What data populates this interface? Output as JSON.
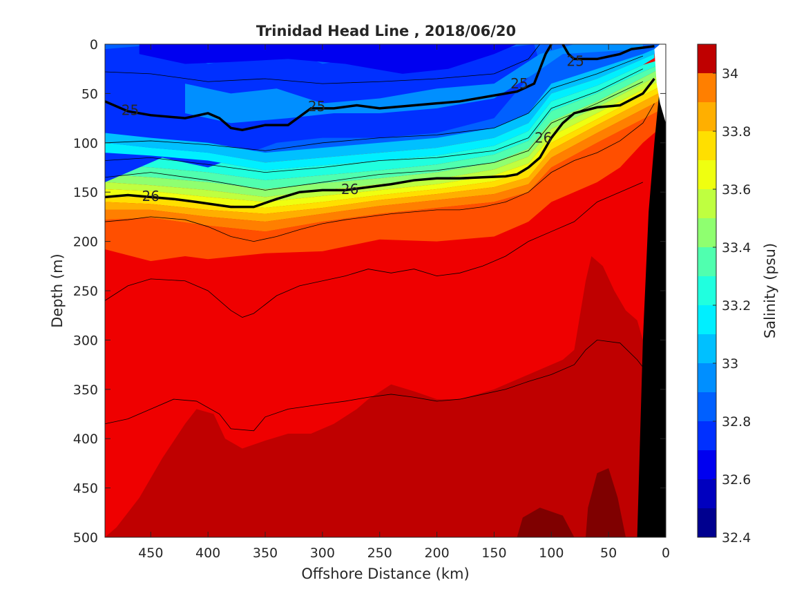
{
  "chart_data": {
    "type": "contour",
    "title": "Trinidad Head Line , 2018/06/20",
    "xlabel": "Offshore Distance (km)",
    "ylabel": "Depth (m)",
    "colorbar_label": "Salinity (psu)",
    "xlim": [
      490,
      0
    ],
    "x_reversed": true,
    "ylim": [
      0,
      500
    ],
    "y_reversed": true,
    "x_ticks": [
      450,
      400,
      350,
      300,
      250,
      200,
      150,
      100,
      50,
      0
    ],
    "y_ticks": [
      0,
      50,
      100,
      150,
      200,
      250,
      300,
      350,
      400,
      450,
      500
    ],
    "colorbar_range": [
      32.4,
      34.1
    ],
    "colorbar_ticks": [
      32.4,
      32.6,
      32.8,
      33,
      33.2,
      33.4,
      33.6,
      33.8,
      34
    ],
    "colorbar_levels": [
      32.4,
      32.5,
      32.6,
      32.7,
      32.8,
      32.9,
      33.0,
      33.1,
      33.2,
      33.3,
      33.4,
      33.5,
      33.6,
      33.7,
      33.8,
      33.9,
      34.0
    ],
    "colormap": [
      "#00008f",
      "#0000bf",
      "#0000f0",
      "#0030ff",
      "#0060ff",
      "#008fff",
      "#00c0ff",
      "#00efff",
      "#20ffdf",
      "#50ffaf",
      "#8fff70",
      "#bfff40",
      "#efff10",
      "#ffdf00",
      "#ffaf00",
      "#ff7f00",
      "#ff4f00",
      "#ef0000",
      "#bf0000"
    ],
    "salinity_bands": [
      {
        "name": "band-32.7",
        "value": 32.75,
        "color_index": 3,
        "top": [
          [
            490,
            5
          ],
          [
            440,
            0
          ],
          [
            400,
            20
          ],
          [
            330,
            5
          ],
          [
            300,
            20
          ],
          [
            250,
            10
          ],
          [
            200,
            0
          ],
          [
            150,
            5
          ],
          [
            115,
            0
          ]
        ],
        "bottom": [
          [
            490,
            140
          ],
          [
            440,
            115
          ],
          [
            400,
            125
          ],
          [
            340,
            100
          ],
          [
            300,
            95
          ],
          [
            250,
            95
          ],
          [
            200,
            90
          ],
          [
            150,
            75
          ],
          [
            110,
            20
          ]
        ]
      },
      {
        "name": "band-32.6",
        "value": 32.65,
        "color_index": 2,
        "top": [
          [
            460,
            0
          ],
          [
            420,
            0
          ],
          [
            380,
            0
          ],
          [
            300,
            0
          ],
          [
            250,
            0
          ],
          [
            200,
            0
          ]
        ],
        "bottom": [
          [
            460,
            10
          ],
          [
            420,
            20
          ],
          [
            380,
            18
          ],
          [
            330,
            15
          ],
          [
            280,
            20
          ],
          [
            230,
            30
          ],
          [
            190,
            25
          ],
          [
            150,
            10
          ],
          [
            130,
            0
          ]
        ]
      },
      {
        "name": "band-32.9",
        "value": 32.9,
        "color_index": 5,
        "top": [
          [
            420,
            40
          ],
          [
            380,
            50
          ],
          [
            340,
            45
          ],
          [
            300,
            60
          ],
          [
            250,
            55
          ],
          [
            200,
            45
          ],
          [
            150,
            40
          ],
          [
            110,
            10
          ],
          [
            80,
            0
          ],
          [
            20,
            0
          ]
        ],
        "bottom": [
          [
            420,
            70
          ],
          [
            380,
            80
          ],
          [
            330,
            75
          ],
          [
            290,
            70
          ],
          [
            250,
            70
          ],
          [
            200,
            65
          ],
          [
            150,
            55
          ],
          [
            115,
            30
          ],
          [
            90,
            10
          ],
          [
            20,
            5
          ]
        ]
      },
      {
        "name": "band-33.0",
        "value": 33.0,
        "color_index": 6,
        "top": [
          [
            490,
            90
          ],
          [
            450,
            95
          ],
          [
            400,
            100
          ],
          [
            350,
            110
          ],
          [
            300,
            105
          ],
          [
            250,
            100
          ],
          [
            200,
            95
          ],
          [
            150,
            85
          ],
          [
            120,
            70
          ],
          [
            100,
            40
          ],
          [
            60,
            25
          ],
          [
            20,
            10
          ],
          [
            10,
            5
          ]
        ],
        "bottom": [
          [
            490,
            100
          ],
          [
            450,
            105
          ],
          [
            400,
            110
          ],
          [
            350,
            120
          ],
          [
            300,
            115
          ],
          [
            250,
            110
          ],
          [
            200,
            105
          ],
          [
            150,
            95
          ],
          [
            120,
            80
          ],
          [
            100,
            50
          ],
          [
            60,
            35
          ],
          [
            20,
            15
          ],
          [
            10,
            10
          ]
        ]
      },
      {
        "name": "band-33.1",
        "value": 33.1,
        "color_index": 7,
        "top": [
          [
            490,
            100
          ],
          [
            450,
            105
          ],
          [
            400,
            110
          ],
          [
            350,
            120
          ],
          [
            300,
            115
          ],
          [
            250,
            110
          ],
          [
            200,
            105
          ],
          [
            150,
            95
          ],
          [
            120,
            80
          ],
          [
            100,
            50
          ],
          [
            60,
            35
          ],
          [
            20,
            15
          ],
          [
            10,
            10
          ]
        ],
        "bottom": [
          [
            490,
            110
          ],
          [
            450,
            113
          ],
          [
            400,
            118
          ],
          [
            350,
            128
          ],
          [
            300,
            123
          ],
          [
            250,
            118
          ],
          [
            200,
            113
          ],
          [
            150,
            103
          ],
          [
            120,
            88
          ],
          [
            100,
            58
          ],
          [
            60,
            42
          ],
          [
            20,
            21
          ],
          [
            10,
            14
          ]
        ]
      }
    ],
    "thick_contours": [
      {
        "name": "sigma-25",
        "label": "25",
        "points": [
          [
            490,
            58
          ],
          [
            470,
            68
          ],
          [
            450,
            72
          ],
          [
            420,
            75
          ],
          [
            400,
            70
          ],
          [
            390,
            75
          ],
          [
            380,
            85
          ],
          [
            370,
            87
          ],
          [
            350,
            82
          ],
          [
            330,
            82
          ],
          [
            310,
            65
          ],
          [
            290,
            65
          ],
          [
            270,
            62
          ],
          [
            250,
            65
          ],
          [
            230,
            63
          ],
          [
            200,
            60
          ],
          [
            180,
            58
          ],
          [
            150,
            52
          ],
          [
            130,
            48
          ],
          [
            115,
            40
          ],
          [
            110,
            25
          ],
          [
            105,
            10
          ],
          [
            100,
            0
          ]
        ]
      },
      {
        "name": "sigma-25b",
        "label": "25",
        "points": [
          [
            90,
            0
          ],
          [
            85,
            10
          ],
          [
            80,
            15
          ],
          [
            60,
            15
          ],
          [
            40,
            10
          ],
          [
            30,
            5
          ],
          [
            10,
            2
          ]
        ]
      },
      {
        "name": "sigma-26",
        "label": "26",
        "points": [
          [
            490,
            155
          ],
          [
            470,
            153
          ],
          [
            450,
            155
          ],
          [
            430,
            157
          ],
          [
            410,
            160
          ],
          [
            380,
            165
          ],
          [
            360,
            165
          ],
          [
            340,
            157
          ],
          [
            320,
            150
          ],
          [
            300,
            148
          ],
          [
            280,
            148
          ],
          [
            260,
            145
          ],
          [
            240,
            142
          ],
          [
            220,
            138
          ],
          [
            200,
            136
          ],
          [
            180,
            136
          ],
          [
            160,
            135
          ],
          [
            140,
            134
          ],
          [
            130,
            132
          ],
          [
            120,
            125
          ],
          [
            110,
            115
          ],
          [
            100,
            95
          ],
          [
            90,
            80
          ],
          [
            80,
            70
          ],
          [
            60,
            64
          ],
          [
            40,
            62
          ],
          [
            20,
            50
          ],
          [
            10,
            35
          ]
        ]
      }
    ],
    "thin_contours": [
      {
        "name": "thin-1",
        "points": [
          [
            490,
            180
          ],
          [
            470,
            178
          ],
          [
            450,
            175
          ],
          [
            420,
            178
          ],
          [
            400,
            185
          ],
          [
            380,
            195
          ],
          [
            360,
            200
          ],
          [
            340,
            195
          ],
          [
            320,
            188
          ],
          [
            300,
            182
          ],
          [
            280,
            178
          ],
          [
            260,
            175
          ],
          [
            240,
            172
          ],
          [
            220,
            170
          ],
          [
            200,
            168
          ],
          [
            180,
            168
          ],
          [
            160,
            165
          ],
          [
            140,
            160
          ],
          [
            120,
            150
          ],
          [
            100,
            130
          ],
          [
            80,
            118
          ],
          [
            60,
            110
          ],
          [
            40,
            98
          ],
          [
            20,
            80
          ],
          [
            10,
            60
          ]
        ]
      },
      {
        "name": "thin-2",
        "points": [
          [
            490,
            260
          ],
          [
            470,
            245
          ],
          [
            450,
            238
          ],
          [
            420,
            240
          ],
          [
            400,
            250
          ],
          [
            380,
            270
          ],
          [
            370,
            277
          ],
          [
            360,
            273
          ],
          [
            340,
            255
          ],
          [
            320,
            245
          ],
          [
            300,
            240
          ],
          [
            280,
            235
          ],
          [
            260,
            228
          ],
          [
            240,
            232
          ],
          [
            220,
            228
          ],
          [
            200,
            235
          ],
          [
            180,
            232
          ],
          [
            160,
            225
          ],
          [
            140,
            215
          ],
          [
            120,
            200
          ],
          [
            100,
            190
          ],
          [
            80,
            180
          ],
          [
            60,
            160
          ],
          [
            40,
            150
          ],
          [
            20,
            140
          ]
        ]
      },
      {
        "name": "thin-3",
        "points": [
          [
            490,
            385
          ],
          [
            470,
            380
          ],
          [
            450,
            370
          ],
          [
            430,
            360
          ],
          [
            410,
            362
          ],
          [
            390,
            375
          ],
          [
            380,
            390
          ],
          [
            360,
            392
          ],
          [
            350,
            378
          ],
          [
            330,
            370
          ],
          [
            300,
            365
          ],
          [
            280,
            362
          ],
          [
            260,
            358
          ],
          [
            240,
            355
          ],
          [
            220,
            358
          ],
          [
            200,
            362
          ],
          [
            180,
            360
          ],
          [
            160,
            355
          ],
          [
            140,
            350
          ],
          [
            120,
            342
          ],
          [
            100,
            335
          ],
          [
            80,
            325
          ],
          [
            70,
            310
          ],
          [
            60,
            300
          ],
          [
            40,
            303
          ],
          [
            25,
            320
          ],
          [
            15,
            335
          ]
        ]
      }
    ],
    "deep_regions": [
      {
        "name": "deep-34.0",
        "color_index": 18,
        "points": [
          [
            490,
            500
          ],
          [
            480,
            490
          ],
          [
            460,
            460
          ],
          [
            440,
            420
          ],
          [
            420,
            385
          ],
          [
            410,
            370
          ],
          [
            395,
            375
          ],
          [
            385,
            400
          ],
          [
            370,
            410
          ],
          [
            350,
            402
          ],
          [
            330,
            395
          ],
          [
            310,
            395
          ],
          [
            290,
            385
          ],
          [
            270,
            370
          ],
          [
            260,
            360
          ],
          [
            240,
            345
          ],
          [
            220,
            352
          ],
          [
            200,
            360
          ],
          [
            180,
            360
          ],
          [
            150,
            350
          ],
          [
            130,
            340
          ],
          [
            110,
            330
          ],
          [
            90,
            320
          ],
          [
            80,
            310
          ],
          [
            70,
            240
          ],
          [
            65,
            215
          ],
          [
            55,
            225
          ],
          [
            45,
            250
          ],
          [
            35,
            270
          ],
          [
            25,
            280
          ],
          [
            20,
            300
          ],
          [
            20,
            500
          ]
        ]
      }
    ],
    "seafloor": {
      "name": "seafloor-mask",
      "points": [
        [
          25,
          500
        ],
        [
          20,
          300
        ],
        [
          15,
          170
        ],
        [
          10,
          100
        ],
        [
          5,
          40
        ],
        [
          0,
          0
        ],
        [
          0,
          500
        ]
      ]
    },
    "white_wedge": {
      "name": "nearshore-gap",
      "points": [
        [
          0,
          0
        ],
        [
          5,
          0
        ],
        [
          10,
          5
        ],
        [
          8,
          40
        ],
        [
          5,
          60
        ],
        [
          0,
          80
        ]
      ]
    }
  }
}
